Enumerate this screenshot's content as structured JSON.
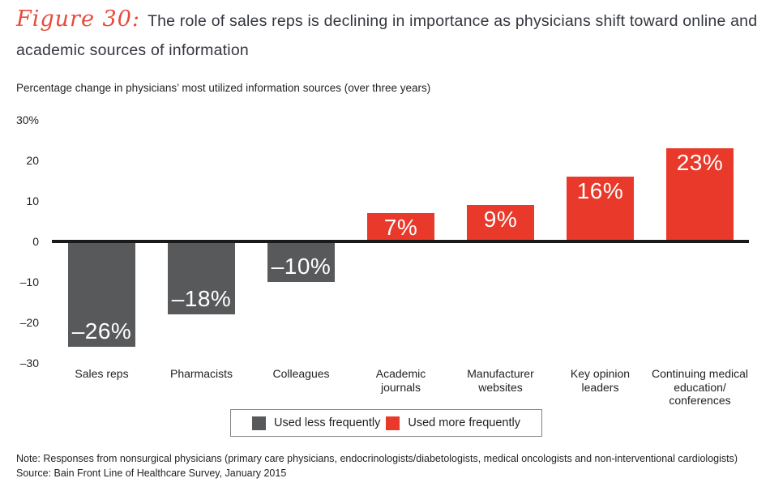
{
  "figure": {
    "label": "Figure 30:",
    "title_line1": "The role of sales reps is declining in importance as physicians shift toward online and",
    "title_line2": "academic sources of information",
    "accent_color": "#e9493c"
  },
  "chart_data": {
    "type": "bar",
    "title": "Percentage change in physicians’ most utilized information sources (over three years)",
    "categories": [
      "Sales reps",
      "Pharmacists",
      "Colleagues",
      "Academic journals",
      "Manufacturer websites",
      "Key opinion leaders",
      "Continuing medical education/conferences"
    ],
    "category_lines": [
      [
        "Sales reps"
      ],
      [
        "Pharmacists"
      ],
      [
        "Colleagues"
      ],
      [
        "Academic",
        "journals"
      ],
      [
        "Manufacturer",
        "websites"
      ],
      [
        "Key opinion",
        "leaders"
      ],
      [
        "Continuing medical",
        "education/",
        "conferences"
      ]
    ],
    "values": [
      -26,
      -18,
      -10,
      7,
      9,
      16,
      23
    ],
    "value_labels": [
      "–26%",
      "–18%",
      "–10%",
      "7%",
      "9%",
      "16%",
      "23%"
    ],
    "colors": {
      "negative": "#58595b",
      "positive": "#e8392b"
    },
    "ylabel": "",
    "xlabel": "",
    "ylim": [
      -30,
      30
    ],
    "yticks": [
      30,
      20,
      10,
      0,
      -10,
      -20,
      -30
    ],
    "ytick_labels": [
      "30%",
      "20",
      "10",
      "0",
      "–10",
      "–20",
      "–30"
    ],
    "grid": false,
    "legend_position": "bottom-center",
    "series": [
      {
        "name": "Used less frequently",
        "color": "#58595b",
        "categories": [
          "Sales reps",
          "Pharmacists",
          "Colleagues"
        ],
        "values": [
          -26,
          -18,
          -10
        ]
      },
      {
        "name": "Used more frequently",
        "color": "#e8392b",
        "categories": [
          "Academic journals",
          "Manufacturer websites",
          "Key opinion leaders",
          "Continuing medical education/conferences"
        ],
        "values": [
          7,
          9,
          16,
          23
        ]
      }
    ]
  },
  "legend": {
    "items": [
      {
        "label": "Used less frequently",
        "color": "#58595b"
      },
      {
        "label": "Used more frequently",
        "color": "#e8392b"
      }
    ]
  },
  "footer": {
    "note": "Note: Responses from nonsurgical physicians (primary care physicians, endocrinologists/diabetologists, medical oncologists and non-interventional cardiologists)",
    "source": "Source: Bain Front Line of Healthcare Survey, January 2015"
  }
}
